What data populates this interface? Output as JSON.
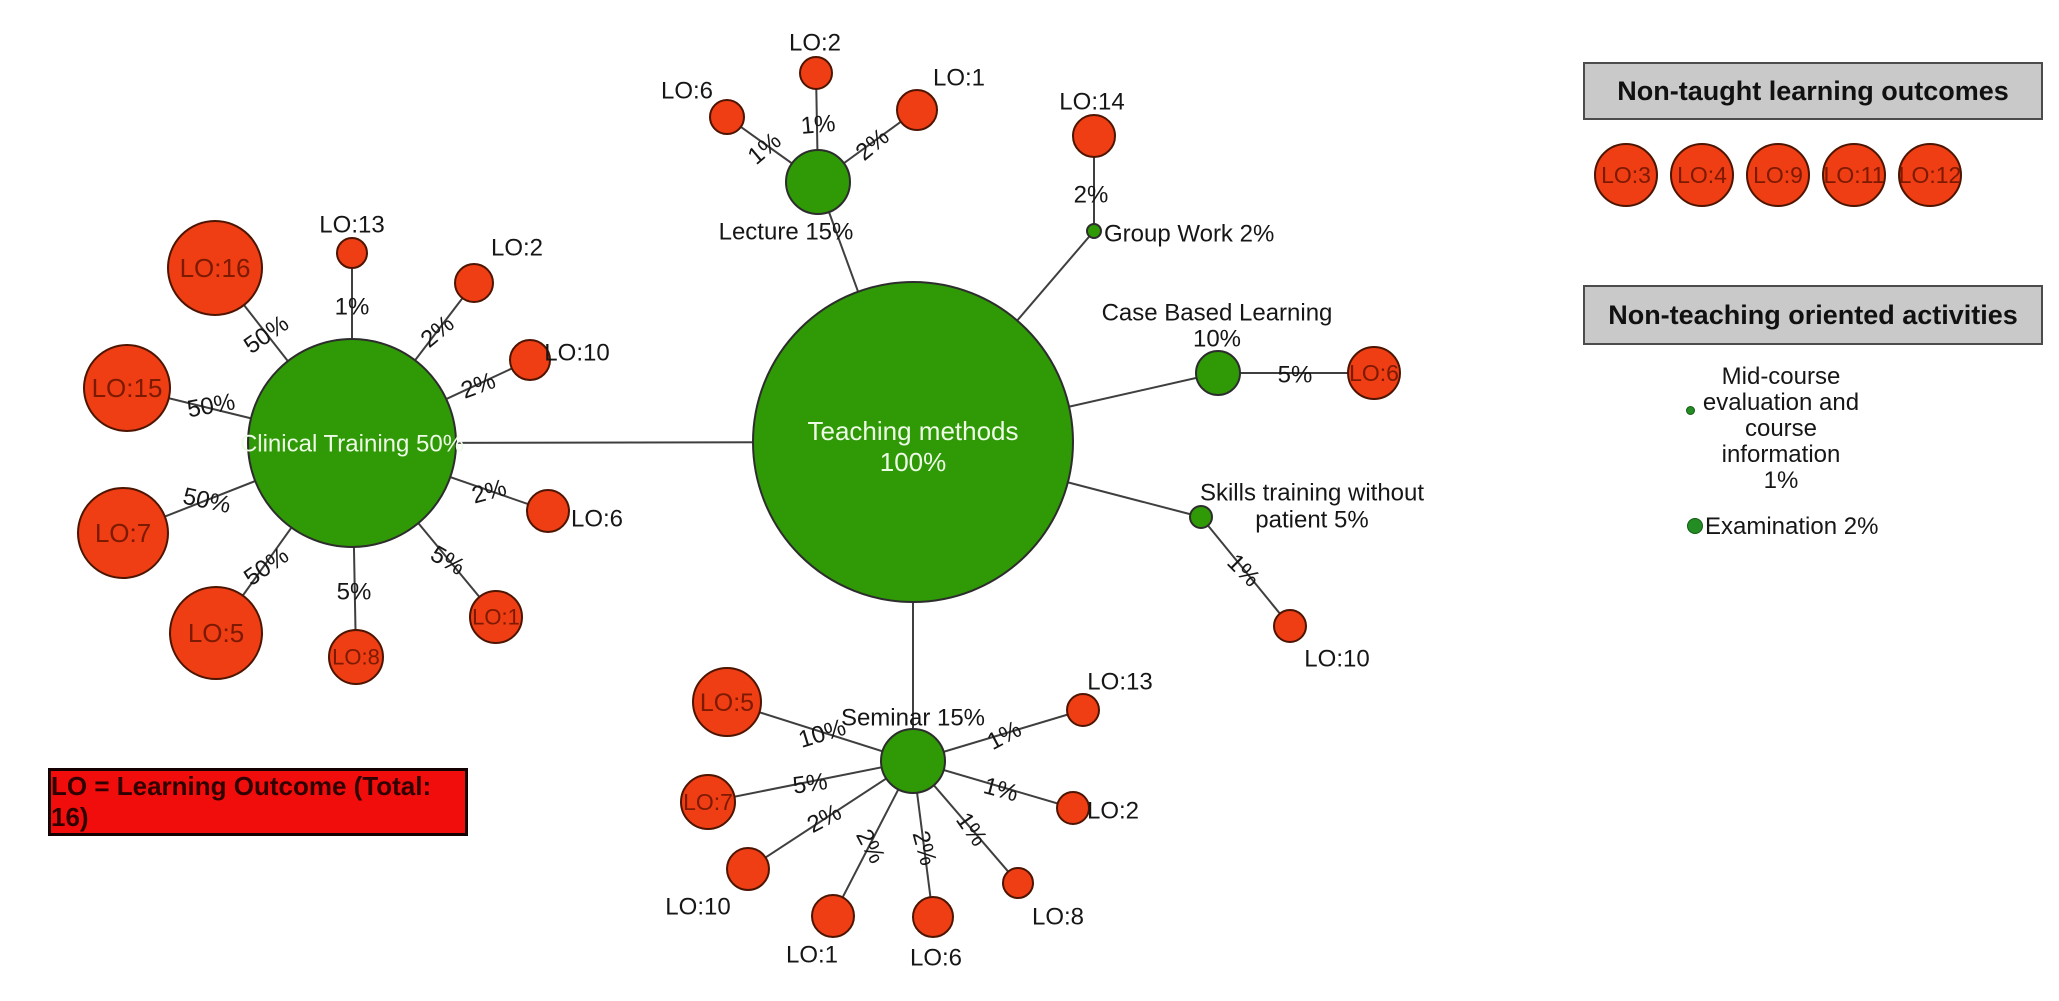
{
  "colors": {
    "method_green": "#2f9906",
    "outcome_red": "#ef3d14",
    "green_stroke": "#2d2d2d",
    "red_stroke": "#4d1500",
    "edge": "#3f3f3f",
    "text": "#161616",
    "inside_label": "#7c1a00",
    "green_label": "#edfbe7",
    "dot_green": "#238c23",
    "header_bg": "#c9c9c9",
    "header_border": "#4c4c4c",
    "legend_bg": "#f20d0d",
    "legend_text": "#300000"
  },
  "graph": {
    "root": {
      "id": "teaching",
      "label": "Teaching methods\n100%",
      "pct": "100%"
    },
    "methods": [
      {
        "id": "clinical",
        "label": "Clinical Training 50%",
        "pct": "50%",
        "outcomes": [
          {
            "id": "cl16",
            "label": "LO:16",
            "pct": "50%"
          },
          {
            "id": "cl13",
            "label": "LO:13",
            "pct": "1%"
          },
          {
            "id": "cl2",
            "label": "LO:2",
            "pct": "2%"
          },
          {
            "id": "cl10",
            "label": "LO:10",
            "pct": "2%"
          },
          {
            "id": "cl6",
            "label": "LO:6",
            "pct": "2%"
          },
          {
            "id": "cl1",
            "label": "LO:1",
            "pct": "5%"
          },
          {
            "id": "cl8",
            "label": "LO:8",
            "pct": "5%"
          },
          {
            "id": "cl5",
            "label": "LO:5",
            "pct": "50%"
          },
          {
            "id": "cl7",
            "label": "LO:7",
            "pct": "50%"
          },
          {
            "id": "cl15",
            "label": "LO:15",
            "pct": "50%"
          }
        ]
      },
      {
        "id": "lecture",
        "label": "Lecture 15%",
        "pct": "15%",
        "outcomes": [
          {
            "id": "le6",
            "label": "LO:6",
            "pct": "1%"
          },
          {
            "id": "le2",
            "label": "LO:2",
            "pct": "1%"
          },
          {
            "id": "le1",
            "label": "LO:1",
            "pct": "2%"
          }
        ]
      },
      {
        "id": "groupwork",
        "label": "Group Work 2%",
        "pct": "2%",
        "outcomes": [
          {
            "id": "gw14",
            "label": "LO:14",
            "pct": "2%"
          }
        ]
      },
      {
        "id": "cbl",
        "label": "Case Based Learning\n10%",
        "pct": "10%",
        "outcomes": [
          {
            "id": "cb6",
            "label": "LO:6",
            "pct": "5%"
          }
        ]
      },
      {
        "id": "skills",
        "label": "Skills training without\npatient 5%",
        "pct": "5%",
        "outcomes": [
          {
            "id": "sk10",
            "label": "LO:10",
            "pct": "1%"
          }
        ]
      },
      {
        "id": "seminar",
        "label": "Seminar 15%",
        "pct": "15%",
        "outcomes": [
          {
            "id": "se5",
            "label": "LO:5",
            "pct": "10%"
          },
          {
            "id": "se7",
            "label": "LO:7",
            "pct": "5%"
          },
          {
            "id": "se10",
            "label": "LO:10",
            "pct": "2%"
          },
          {
            "id": "se1",
            "label": "LO:1",
            "pct": "2%"
          },
          {
            "id": "se6",
            "label": "LO:6",
            "pct": "2%"
          },
          {
            "id": "se8",
            "label": "LO:8",
            "pct": "1%"
          },
          {
            "id": "se2",
            "label": "LO:2",
            "pct": "1%"
          },
          {
            "id": "se13",
            "label": "LO:13",
            "pct": "1%"
          }
        ]
      }
    ]
  },
  "panels": {
    "non_taught": {
      "title": "Non-taught learning outcomes",
      "items": [
        "LO:3",
        "LO:4",
        "LO:9",
        "LO:11",
        "LO:12"
      ]
    },
    "non_teaching": {
      "title": "Non-teaching oriented activities",
      "items": [
        {
          "display": "Mid-course\nevaluation and\ncourse information\n1%",
          "pct": "1%"
        },
        {
          "display": "Examination 2%",
          "pct": "2%"
        }
      ]
    }
  },
  "legend_box": {
    "text": "LO = Learning Outcome (Total: 16)"
  }
}
